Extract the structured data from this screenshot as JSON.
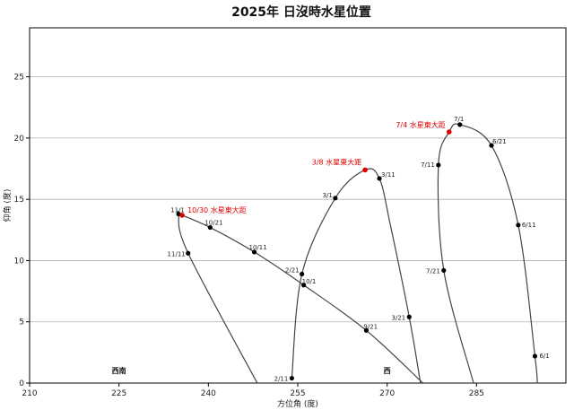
{
  "chart_data": {
    "type": "line",
    "title": "2025年 日沒時水星位置",
    "xlabel": "方位角 (度)",
    "ylabel": "仰角 (度)",
    "xlim": [
      210,
      300
    ],
    "ylim": [
      0,
      29
    ],
    "x_ticks": [
      210,
      225,
      240,
      255,
      270,
      285
    ],
    "y_ticks": [
      0,
      5,
      10,
      15,
      20,
      25
    ],
    "grid": "horizontal",
    "direction_labels": [
      {
        "text": "西南",
        "x": 225,
        "y": 0.8
      },
      {
        "text": "西",
        "x": 270,
        "y": 0.8
      }
    ],
    "series": [
      {
        "values": [
          {
            "x": 254.0,
            "y": 0.4,
            "label": "2/11"
          },
          {
            "x": 255.7,
            "y": 8.9,
            "label": "2/21"
          },
          {
            "x": 261.3,
            "y": 15.1,
            "label": "3/1"
          },
          {
            "x": 266.3,
            "y": 17.4
          },
          {
            "x": 268.7,
            "y": 16.7,
            "label": "3/11"
          },
          {
            "x": 270.5,
            "y": 13.0
          },
          {
            "x": 273.7,
            "y": 5.4,
            "label": "3/21"
          },
          {
            "x": 275.6,
            "y": 0.0
          }
        ]
      },
      {
        "values": [
          {
            "x": 284.5,
            "y": 0.0
          },
          {
            "x": 279.5,
            "y": 9.2,
            "label": "7/21"
          },
          {
            "x": 278.6,
            "y": 17.8,
            "label": "7/11"
          },
          {
            "x": 280.4,
            "y": 20.5
          },
          {
            "x": 282.2,
            "y": 21.1,
            "label": "7/1"
          },
          {
            "x": 287.5,
            "y": 19.4,
            "label": "6/21"
          },
          {
            "x": 292.0,
            "y": 12.9,
            "label": "6/11"
          },
          {
            "x": 294.8,
            "y": 2.2,
            "label": "6/1"
          },
          {
            "x": 295.2,
            "y": 0.0
          }
        ]
      },
      {
        "values": [
          {
            "x": 276.0,
            "y": 0.0
          },
          {
            "x": 266.5,
            "y": 4.3,
            "label": "9/21"
          },
          {
            "x": 256.0,
            "y": 8.0,
            "label": "10/1"
          },
          {
            "x": 247.7,
            "y": 10.7,
            "label": "10/11"
          },
          {
            "x": 240.3,
            "y": 12.7,
            "label": "10/21"
          },
          {
            "x": 235.6,
            "y": 13.7
          },
          {
            "x": 235.0,
            "y": 13.8,
            "label": "11/1"
          },
          {
            "x": 236.6,
            "y": 10.6,
            "label": "11/11"
          },
          {
            "x": 248.2,
            "y": 0.0
          }
        ]
      }
    ],
    "elongations": [
      {
        "label": "3/8 水星東大距",
        "x": 266.3,
        "y": 17.4
      },
      {
        "label": "7/4 水星東大距",
        "x": 280.4,
        "y": 20.5
      },
      {
        "label": "10/30 水星東大距",
        "x": 235.6,
        "y": 13.7
      }
    ],
    "colors": {
      "line": "#444444",
      "marker": "#000000",
      "highlight": "#e00000",
      "grid": "#b0b0b0"
    }
  }
}
